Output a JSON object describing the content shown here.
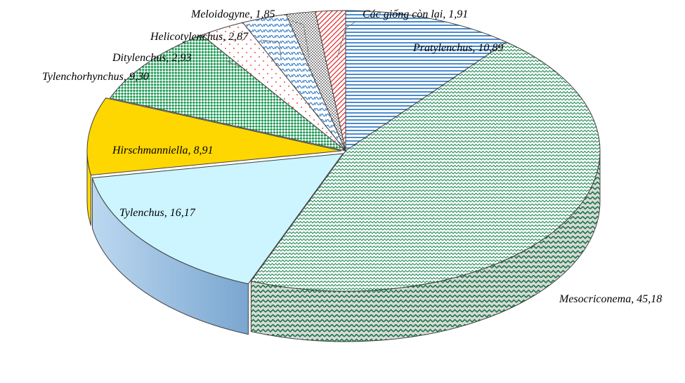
{
  "chart_data": {
    "type": "pie",
    "style": "3d-exploded-pie",
    "title": "",
    "slices": [
      {
        "label": "Pratylenchus",
        "value": 10.89,
        "display": "Pratylenchus, 10,89",
        "color": "#1f6fc0",
        "pattern": "horizontal-lines"
      },
      {
        "label": "Mesocriconema",
        "value": 45.18,
        "display": "Mesocriconema, 45,18",
        "color": "#1e8a55",
        "pattern": "zigzag"
      },
      {
        "label": "Tylenchus",
        "value": 16.17,
        "display": "Tylenchus, 16,17",
        "color": "#ccf5ff",
        "pattern": "solid"
      },
      {
        "label": "Hirschmanniella",
        "value": 8.91,
        "display": "Hirschmanniella, 8,91",
        "color": "#ffd700",
        "pattern": "solid"
      },
      {
        "label": "Tylenchorhynchus",
        "value": 9.3,
        "display": "Tylenchorhynchus, 9,30",
        "color": "#1e9a55",
        "pattern": "diagonal-check"
      },
      {
        "label": "Ditylenchus",
        "value": 2.93,
        "display": "Ditylenchus, 2,93",
        "color": "#e02020",
        "pattern": "dots"
      },
      {
        "label": "Helicotylenchus",
        "value": 2.87,
        "display": "Helicotylenchus, 2,87",
        "color": "#1f6fc0",
        "pattern": "wave"
      },
      {
        "label": "Meloidogyne",
        "value": 1.85,
        "display": "Meloidogyne, 1,85",
        "color": "#000000",
        "pattern": "dense-dots"
      },
      {
        "label": "Các giống còn lại",
        "value": 1.91,
        "display": "Các giống còn lại, 1,91",
        "color": "#e02020",
        "pattern": "diagonal-lines"
      }
    ]
  }
}
